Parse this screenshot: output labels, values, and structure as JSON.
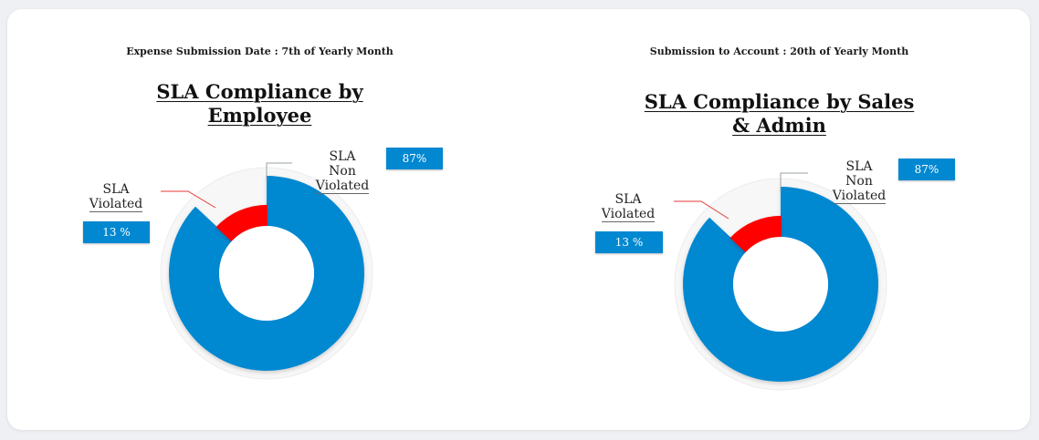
{
  "colors": {
    "non_violated": "#0288d1",
    "violated": "#ff0000",
    "background": "#ffffff"
  },
  "chart_data": [
    {
      "type": "pie",
      "variant": "donut",
      "subtitle": "Expense Submission Date : 7th of Yearly Month",
      "title_lines": [
        "SLA Compliance by",
        "Employee"
      ],
      "categories": [
        "SLA Non Violated",
        "SLA Violated"
      ],
      "label_lines": [
        [
          "SLA",
          "Non",
          "Violated"
        ],
        [
          "SLA",
          "Violated"
        ]
      ],
      "values": [
        87,
        13
      ],
      "data_labels": [
        "87%",
        "13 %"
      ]
    },
    {
      "type": "pie",
      "variant": "donut",
      "subtitle": "Submission to Account : 20th of Yearly Month",
      "title_lines": [
        "SLA Compliance by Sales",
        "& Admin"
      ],
      "categories": [
        "SLA Non Violated",
        "SLA Violated"
      ],
      "label_lines": [
        [
          "SLA",
          "Non",
          "Violated"
        ],
        [
          "SLA",
          "Violated"
        ]
      ],
      "values": [
        87,
        13
      ],
      "data_labels": [
        "87%",
        "13 %"
      ]
    }
  ]
}
